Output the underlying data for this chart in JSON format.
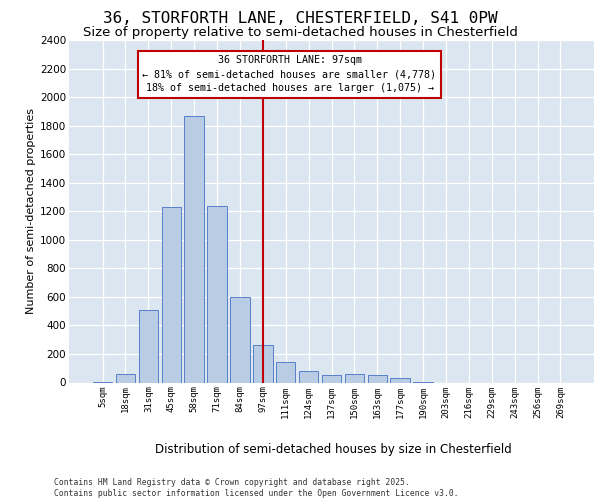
{
  "title_line1": "36, STORFORTH LANE, CHESTERFIELD, S41 0PW",
  "title_line2": "Size of property relative to semi-detached houses in Chesterfield",
  "xlabel": "Distribution of semi-detached houses by size in Chesterfield",
  "ylabel": "Number of semi-detached properties",
  "footer_line1": "Contains HM Land Registry data © Crown copyright and database right 2025.",
  "footer_line2": "Contains public sector information licensed under the Open Government Licence v3.0.",
  "categories": [
    "5sqm",
    "18sqm",
    "31sqm",
    "45sqm",
    "58sqm",
    "71sqm",
    "84sqm",
    "97sqm",
    "111sqm",
    "124sqm",
    "137sqm",
    "150sqm",
    "163sqm",
    "177sqm",
    "190sqm",
    "203sqm",
    "216sqm",
    "229sqm",
    "243sqm",
    "256sqm",
    "269sqm"
  ],
  "values": [
    5,
    60,
    510,
    1230,
    1870,
    1240,
    600,
    265,
    145,
    80,
    50,
    60,
    50,
    30,
    5,
    0,
    0,
    0,
    0,
    0,
    0
  ],
  "bar_color": "#b8cce4",
  "bar_edge_color": "#4472c4",
  "vline_x_index": 7,
  "vline_color": "#c00000",
  "background_color": "#dce6f1",
  "annotation_text": "36 STORFORTH LANE: 97sqm\n← 81% of semi-detached houses are smaller (4,778)\n18% of semi-detached houses are larger (1,075) →",
  "annotation_box_edgecolor": "#c00000",
  "ylim": [
    0,
    2400
  ],
  "yticks": [
    0,
    200,
    400,
    600,
    800,
    1000,
    1200,
    1400,
    1600,
    1800,
    2000,
    2200,
    2400
  ],
  "grid_color": "#ffffff",
  "fig_width": 6.0,
  "fig_height": 5.0,
  "fig_dpi": 100
}
